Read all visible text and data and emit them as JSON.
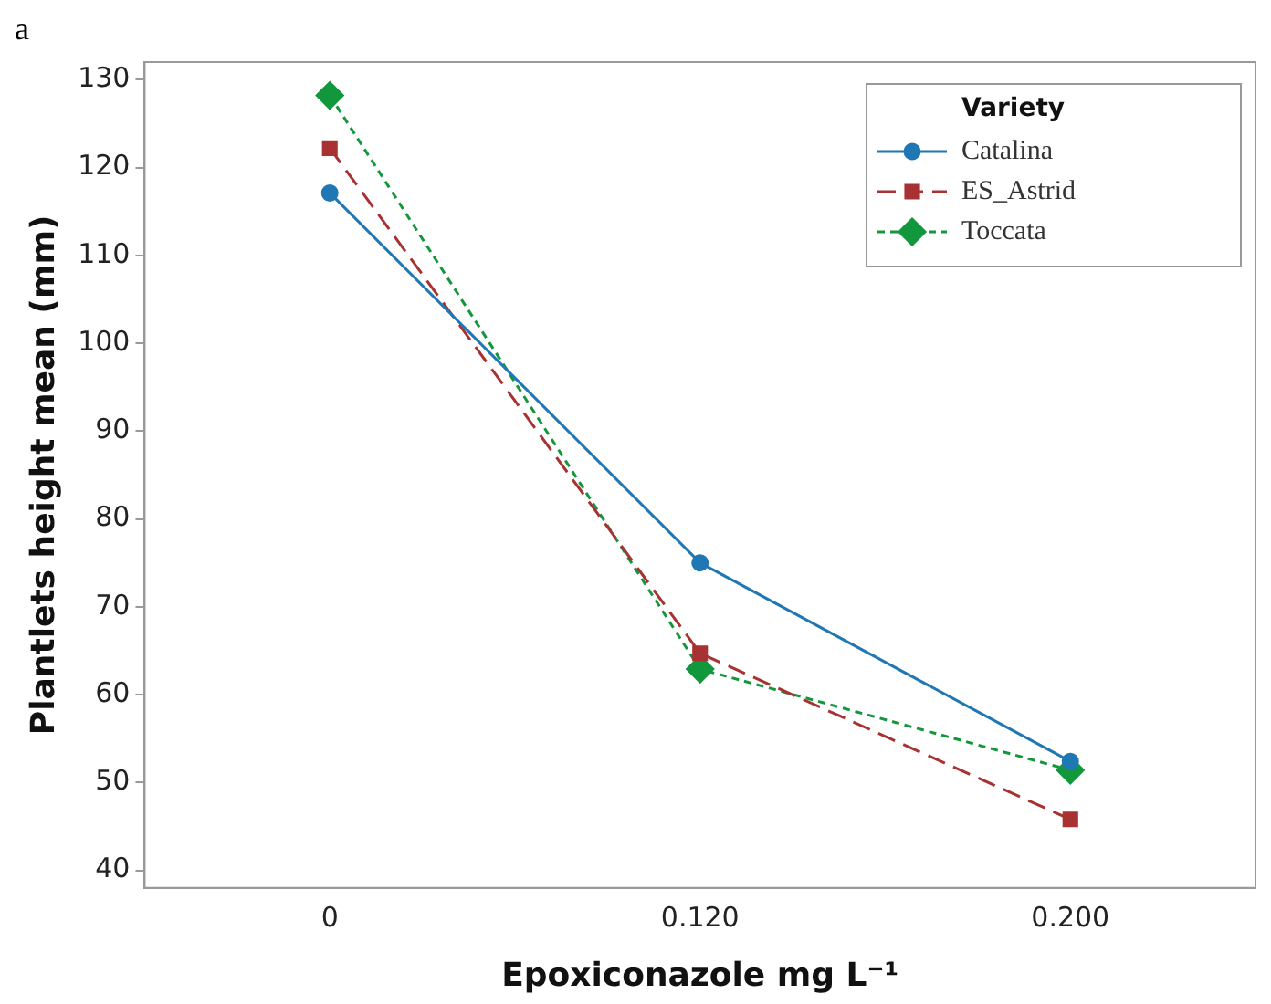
{
  "chart_data": {
    "type": "line",
    "xlabel": "Epoxiconazole mg L⁻¹",
    "ylabel": "Plantlets height mean (mm)",
    "legend_title": "Variety",
    "legend": "top right",
    "annotations": [
      "a"
    ],
    "categories": [
      "0",
      "0.120",
      "0.200"
    ],
    "ylim": [
      38,
      132
    ],
    "yticks": [
      40,
      50,
      60,
      70,
      80,
      90,
      100,
      110,
      120,
      130
    ],
    "grid": false,
    "series": [
      {
        "name": "Catalina",
        "color": "#1f77b4",
        "marker": "circle",
        "line_style": "solid",
        "values": [
          117.1,
          75,
          52.4
        ]
      },
      {
        "name": "ES_Astrid",
        "color": "#a83232",
        "marker": "square",
        "line_style": "dashed",
        "values": [
          122.2,
          64.7,
          45.8
        ]
      },
      {
        "name": "Toccata",
        "color": "#12973c",
        "marker": "diamond",
        "line_style": "dotted",
        "values": [
          128.2,
          62.9,
          51.4
        ]
      }
    ]
  }
}
